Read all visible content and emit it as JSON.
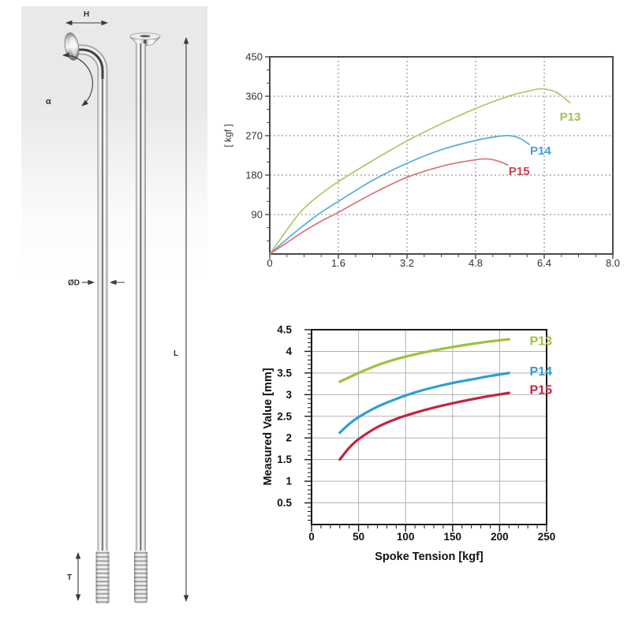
{
  "diagram": {
    "description": "bicycle spoke technical drawing",
    "labels": {
      "height": "H",
      "angle": "α",
      "diameter": "ØD",
      "length": "L",
      "thread": "T"
    }
  },
  "chart_data": [
    {
      "type": "line",
      "title": "",
      "xlabel": "",
      "ylabel": "[ kgf ]",
      "xlim": [
        0,
        8.0
      ],
      "ylim": [
        0,
        450
      ],
      "xticks": [
        0,
        1.6,
        3.2,
        4.8,
        6.4,
        8.0
      ],
      "xtick_labels": [
        "0",
        "1.6",
        "3.2",
        "4.8",
        "6.4",
        "8.0"
      ],
      "yticks": [
        90,
        180,
        270,
        360,
        450
      ],
      "ytick_labels": [
        "90",
        "180",
        "270",
        "360",
        "450"
      ],
      "x_minor_step": 0.4,
      "y_minor_step": 30,
      "grid": "dashed",
      "grid_color": "#7d7d7d",
      "axis_color": "#4a4a4a",
      "tick_text_color": "#333333",
      "legend_position": "inline-right",
      "series": [
        {
          "name": "P13",
          "color": "#a9ca68",
          "label_color": "#9fc455",
          "points": [
            [
              0,
              0
            ],
            [
              0.35,
              48
            ],
            [
              0.7,
              94
            ],
            [
              1.1,
              130
            ],
            [
              1.6,
              165
            ],
            [
              2.4,
              213
            ],
            [
              3.2,
              258
            ],
            [
              4.0,
              297
            ],
            [
              4.8,
              332
            ],
            [
              5.6,
              361
            ],
            [
              6.0,
              371
            ],
            [
              6.35,
              377
            ],
            [
              6.7,
              368
            ],
            [
              7.0,
              345
            ]
          ],
          "label_at": [
            6.76,
            313
          ]
        },
        {
          "name": "P14",
          "color": "#57add9",
          "label_color": "#3fa2d6",
          "points": [
            [
              0,
              0
            ],
            [
              0.4,
              34
            ],
            [
              0.8,
              66
            ],
            [
              1.2,
              95
            ],
            [
              1.6,
              120
            ],
            [
              2.4,
              168
            ],
            [
              3.2,
              207
            ],
            [
              4.0,
              238
            ],
            [
              4.8,
              259
            ],
            [
              5.3,
              268
            ],
            [
              5.6,
              270
            ],
            [
              5.85,
              263
            ],
            [
              6.05,
              250
            ]
          ],
          "label_at": [
            6.07,
            236
          ]
        },
        {
          "name": "P15",
          "color": "#dd7078",
          "label_color": "#c9414f",
          "points": [
            [
              0,
              0
            ],
            [
              0.4,
              26
            ],
            [
              0.8,
              52
            ],
            [
              1.2,
              75
            ],
            [
              1.6,
              95
            ],
            [
              2.4,
              138
            ],
            [
              3.2,
              175
            ],
            [
              4.0,
              200
            ],
            [
              4.6,
              212
            ],
            [
              5.0,
              217
            ],
            [
              5.3,
              213
            ],
            [
              5.55,
              203
            ]
          ],
          "label_at": [
            5.57,
            189
          ]
        }
      ]
    },
    {
      "type": "line",
      "title": "",
      "xlabel": "Spoke Tension [kgf]",
      "ylabel": "Measured Value [mm]",
      "xlim": [
        0,
        250
      ],
      "ylim": [
        0,
        4.5
      ],
      "xticks": [
        0,
        50,
        100,
        150,
        200,
        250
      ],
      "xtick_labels": [
        "0",
        "50",
        "100",
        "150",
        "200",
        "250"
      ],
      "yticks": [
        0.5,
        1,
        1.5,
        2,
        2.5,
        3,
        3.5,
        4,
        4.5
      ],
      "ytick_labels": [
        "0.5",
        "1",
        "1.5",
        "2",
        "2.5",
        "3",
        "3.5",
        "4",
        "4.5"
      ],
      "x_minor_step": 10,
      "y_minor_step": 0.1,
      "grid": "solid",
      "grid_color": "#b0b0b0",
      "axis_color": "#1a1a1a",
      "tick_text_color": "#111111",
      "legend_position": "inline-right",
      "series": [
        {
          "name": "P13",
          "color": "#9dc13f",
          "label_color": "#9dc13f",
          "points": [
            [
              30,
              3.3
            ],
            [
              40,
              3.4
            ],
            [
              50,
              3.5
            ],
            [
              70,
              3.68
            ],
            [
              90,
              3.82
            ],
            [
              110,
              3.93
            ],
            [
              130,
              4.02
            ],
            [
              150,
              4.1
            ],
            [
              170,
              4.17
            ],
            [
              190,
              4.23
            ],
            [
              210,
              4.28
            ]
          ],
          "label_at": [
            232,
            4.24
          ]
        },
        {
          "name": "P14",
          "color": "#2f9fd3",
          "label_color": "#2f9fd3",
          "points": [
            [
              30,
              2.12
            ],
            [
              40,
              2.32
            ],
            [
              50,
              2.48
            ],
            [
              70,
              2.72
            ],
            [
              90,
              2.9
            ],
            [
              110,
              3.05
            ],
            [
              130,
              3.17
            ],
            [
              150,
              3.27
            ],
            [
              170,
              3.35
            ],
            [
              190,
              3.43
            ],
            [
              210,
              3.5
            ]
          ],
          "label_at": [
            232,
            3.53
          ]
        },
        {
          "name": "P15",
          "color": "#c22440",
          "label_color": "#c22440",
          "points": [
            [
              30,
              1.5
            ],
            [
              40,
              1.77
            ],
            [
              50,
              1.97
            ],
            [
              70,
              2.25
            ],
            [
              90,
              2.44
            ],
            [
              110,
              2.58
            ],
            [
              130,
              2.7
            ],
            [
              150,
              2.8
            ],
            [
              170,
              2.89
            ],
            [
              190,
              2.97
            ],
            [
              210,
              3.04
            ]
          ],
          "label_at": [
            232,
            3.11
          ]
        }
      ]
    }
  ]
}
